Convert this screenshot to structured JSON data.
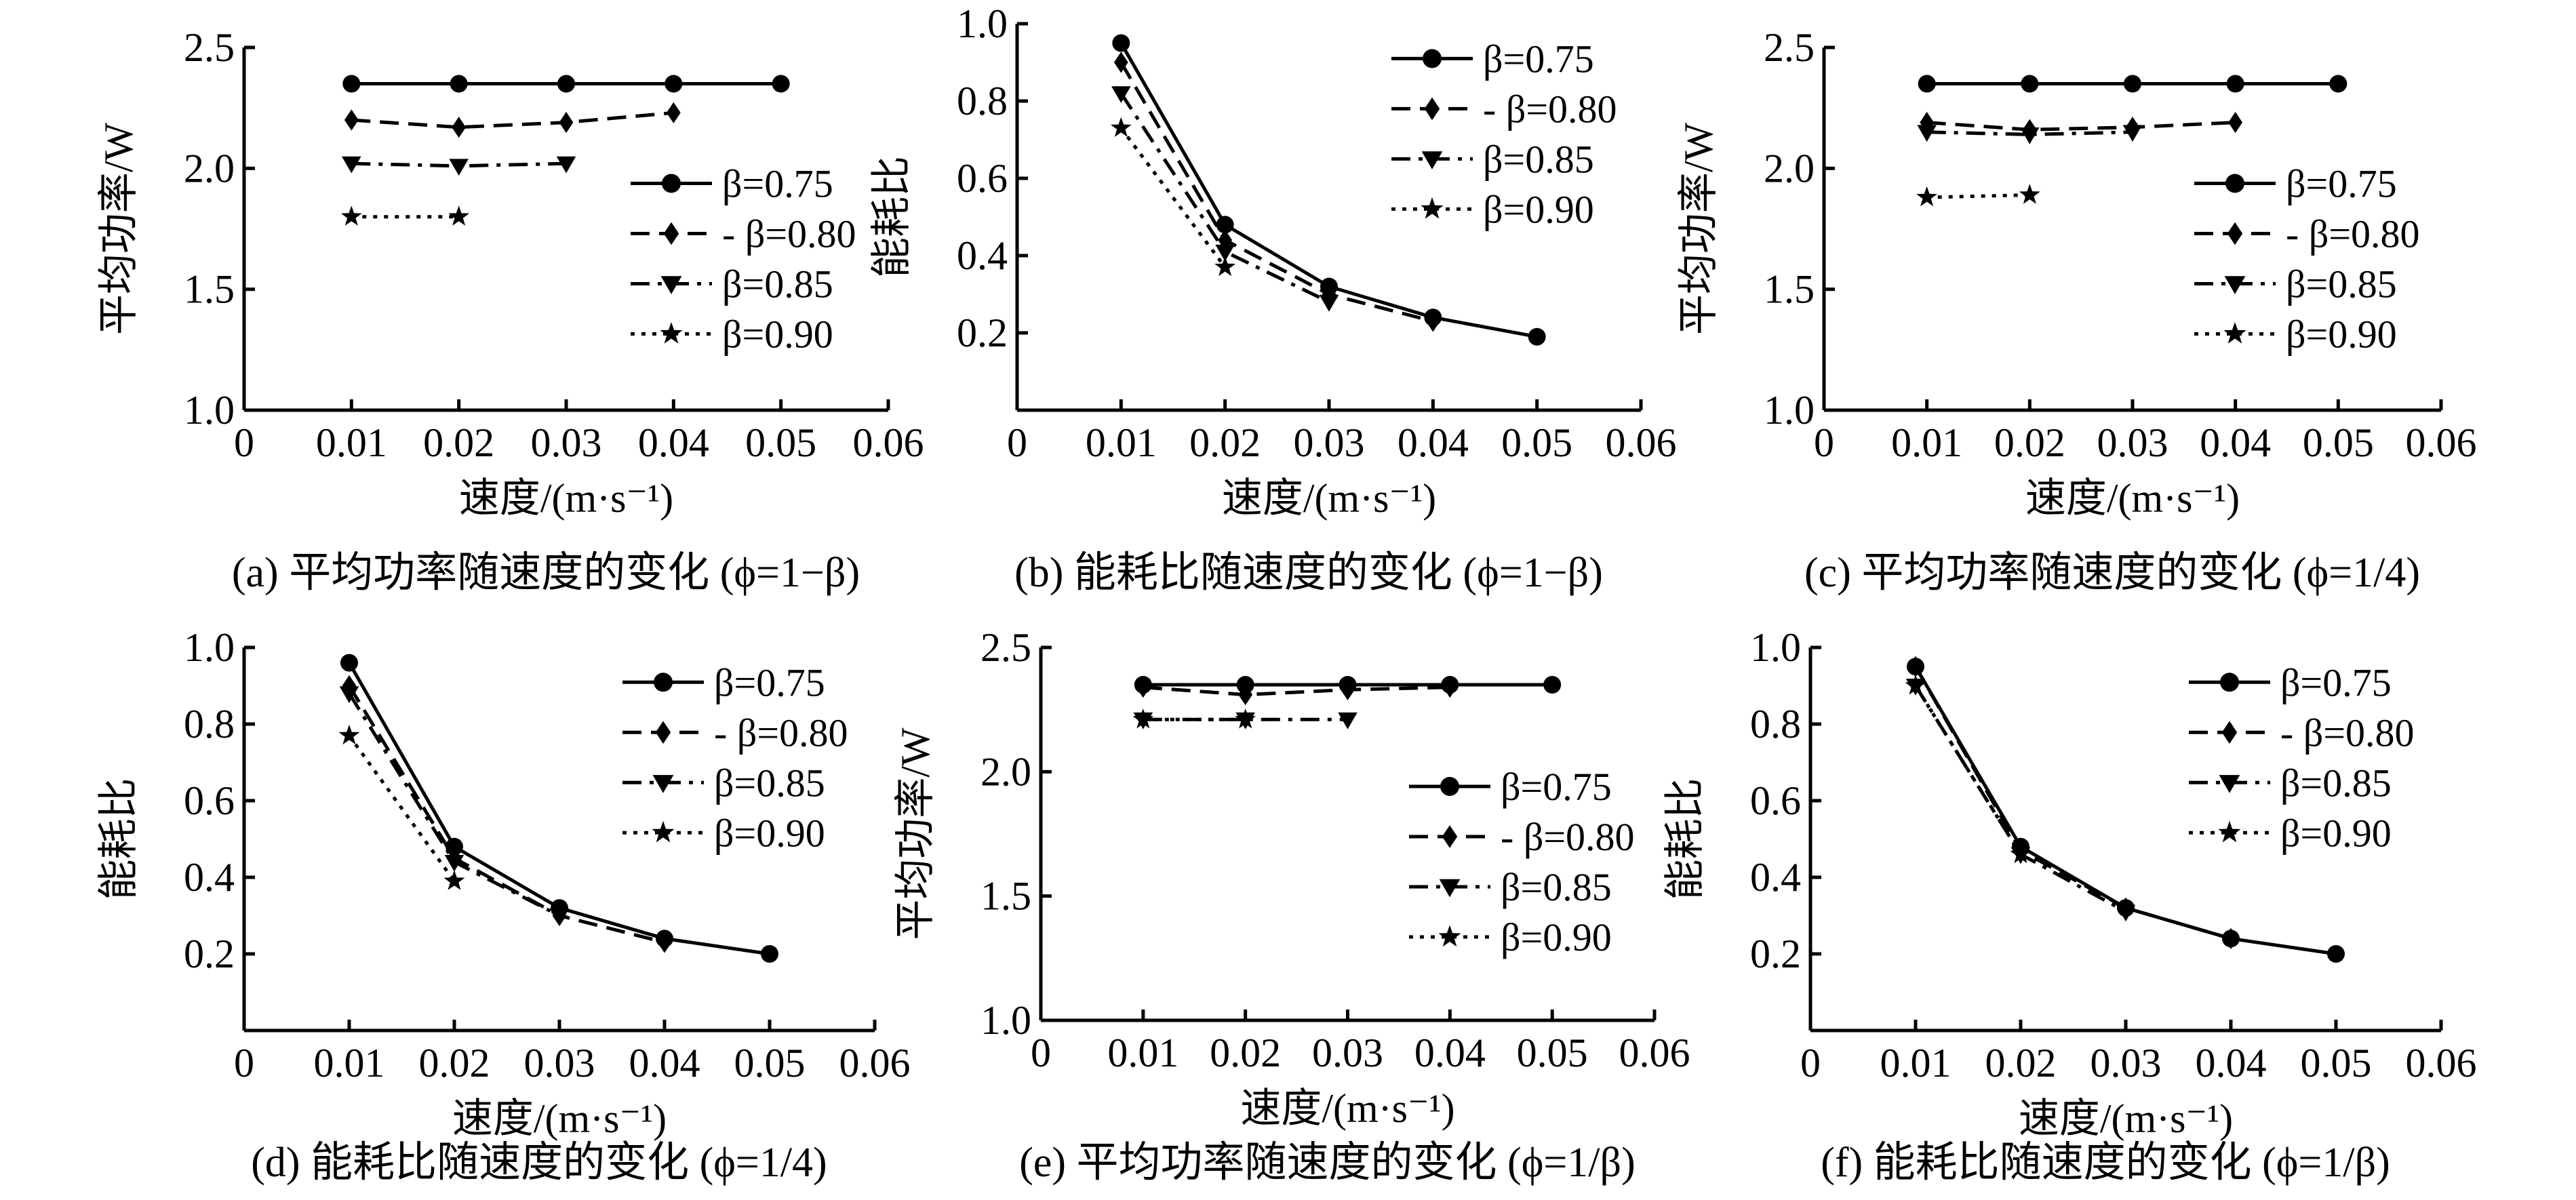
{
  "colors": {
    "ink": "#000000",
    "background": "#ffffff"
  },
  "chart_data": [
    {
      "type": "line",
      "caption": "(a) 平均功率随速度的变化 (ϕ=1−β)",
      "xlabel": "速度/(m·s⁻¹)",
      "ylabel": "平均功率/W",
      "xlim": [
        0,
        0.06
      ],
      "ylim": [
        1.0,
        2.5
      ],
      "xticks": [
        0,
        0.01,
        0.02,
        0.03,
        0.04,
        0.05,
        0.06
      ],
      "xtick_labels": [
        "0",
        "0.01",
        "0.02",
        "0.03",
        "0.04",
        "0.05",
        "0.06"
      ],
      "yticks": [
        1.0,
        1.5,
        2.0,
        2.5
      ],
      "ytick_labels": [
        "1.0",
        "1.5",
        "2.0",
        "2.5"
      ],
      "legend_position": "lower-right",
      "series": [
        {
          "name": "β=0.75",
          "legend": "β=0.75",
          "marker": "circle",
          "dash": "solid",
          "x": [
            0.01,
            0.02,
            0.03,
            0.04,
            0.05
          ],
          "y": [
            2.35,
            2.35,
            2.35,
            2.35,
            2.35
          ]
        },
        {
          "name": "β=0.80",
          "legend": "- β=0.80",
          "marker": "diamond",
          "dash": "dash",
          "x": [
            0.01,
            0.02,
            0.03,
            0.04
          ],
          "y": [
            2.2,
            2.17,
            2.19,
            2.23
          ]
        },
        {
          "name": "β=0.85",
          "legend": "β=0.85",
          "marker": "triangle",
          "dash": "dashdot",
          "x": [
            0.01,
            0.02,
            0.03
          ],
          "y": [
            2.02,
            2.01,
            2.02
          ]
        },
        {
          "name": "β=0.90",
          "legend": "β=0.90",
          "marker": "star",
          "dash": "dot",
          "x": [
            0.01,
            0.02
          ],
          "y": [
            1.8,
            1.8
          ]
        }
      ]
    },
    {
      "type": "line",
      "caption": "(b) 能耗比随速度的变化 (ϕ=1−β)",
      "xlabel": "速度/(m·s⁻¹)",
      "ylabel": "能耗比",
      "xlim": [
        0,
        0.06
      ],
      "ylim": [
        0.0,
        1.0
      ],
      "xticks": [
        0,
        0.01,
        0.02,
        0.03,
        0.04,
        0.05,
        0.06
      ],
      "xtick_labels": [
        "0",
        "0.01",
        "0.02",
        "0.03",
        "0.04",
        "0.05",
        "0.06"
      ],
      "yticks": [
        0.2,
        0.4,
        0.6,
        0.8,
        1.0
      ],
      "ytick_labels": [
        "0.2",
        "0.4",
        "0.6",
        "0.8",
        "1.0"
      ],
      "legend_position": "top-right",
      "series": [
        {
          "name": "β=0.75",
          "legend": "β=0.75",
          "marker": "circle",
          "dash": "solid",
          "x": [
            0.01,
            0.02,
            0.03,
            0.04,
            0.05
          ],
          "y": [
            0.95,
            0.48,
            0.32,
            0.24,
            0.19
          ]
        },
        {
          "name": "β=0.80",
          "legend": "- β=0.80",
          "marker": "diamond",
          "dash": "dash",
          "x": [
            0.01,
            0.02,
            0.03,
            0.04
          ],
          "y": [
            0.9,
            0.44,
            0.3,
            0.23
          ]
        },
        {
          "name": "β=0.85",
          "legend": "β=0.85",
          "marker": "triangle",
          "dash": "dashdot",
          "x": [
            0.01,
            0.02,
            0.03
          ],
          "y": [
            0.82,
            0.41,
            0.28
          ]
        },
        {
          "name": "β=0.90",
          "legend": "β=0.90",
          "marker": "star",
          "dash": "dot",
          "x": [
            0.01,
            0.02
          ],
          "y": [
            0.73,
            0.37
          ]
        }
      ]
    },
    {
      "type": "line",
      "caption": "(c) 平均功率随速度的变化 (ϕ=1/4)",
      "xlabel": "速度/(m·s⁻¹)",
      "ylabel": "平均功率/W",
      "xlim": [
        0,
        0.06
      ],
      "ylim": [
        1.0,
        2.5
      ],
      "xticks": [
        0,
        0.01,
        0.02,
        0.03,
        0.04,
        0.05,
        0.06
      ],
      "xtick_labels": [
        "0",
        "0.01",
        "0.02",
        "0.03",
        "0.04",
        "0.05",
        "0.06"
      ],
      "yticks": [
        1.0,
        1.5,
        2.0,
        2.5
      ],
      "ytick_labels": [
        "1.0",
        "1.5",
        "2.0",
        "2.5"
      ],
      "legend_position": "lower-right",
      "series": [
        {
          "name": "β=0.75",
          "legend": "β=0.75",
          "marker": "circle",
          "dash": "solid",
          "x": [
            0.01,
            0.02,
            0.03,
            0.04,
            0.05
          ],
          "y": [
            2.35,
            2.35,
            2.35,
            2.35,
            2.35
          ]
        },
        {
          "name": "β=0.80",
          "legend": "- β=0.80",
          "marker": "diamond",
          "dash": "dash",
          "x": [
            0.01,
            0.02,
            0.03,
            0.04
          ],
          "y": [
            2.19,
            2.16,
            2.17,
            2.19
          ]
        },
        {
          "name": "β=0.85",
          "legend": "β=0.85",
          "marker": "triangle",
          "dash": "dashdot",
          "x": [
            0.01,
            0.02,
            0.03
          ],
          "y": [
            2.15,
            2.14,
            2.15
          ]
        },
        {
          "name": "β=0.90",
          "legend": "β=0.90",
          "marker": "star",
          "dash": "dot",
          "x": [
            0.01,
            0.02
          ],
          "y": [
            1.88,
            1.89
          ]
        }
      ]
    },
    {
      "type": "line",
      "caption": "(d) 能耗比随速度的变化 (ϕ=1/4)",
      "xlabel": "速度/(m·s⁻¹)",
      "ylabel": "能耗比",
      "xlim": [
        0,
        0.06
      ],
      "ylim": [
        0.0,
        1.0
      ],
      "xticks": [
        0,
        0.01,
        0.02,
        0.03,
        0.04,
        0.05,
        0.06
      ],
      "xtick_labels": [
        "0",
        "0.01",
        "0.02",
        "0.03",
        "0.04",
        "0.05",
        "0.06"
      ],
      "yticks": [
        0.2,
        0.4,
        0.6,
        0.8,
        1.0
      ],
      "ytick_labels": [
        "0.2",
        "0.4",
        "0.6",
        "0.8",
        "1.0"
      ],
      "legend_position": "top-right",
      "series": [
        {
          "name": "β=0.75",
          "legend": "β=0.75",
          "marker": "circle",
          "dash": "solid",
          "x": [
            0.01,
            0.02,
            0.03,
            0.04,
            0.05
          ],
          "y": [
            0.96,
            0.48,
            0.32,
            0.24,
            0.2
          ]
        },
        {
          "name": "β=0.80",
          "legend": "- β=0.80",
          "marker": "diamond",
          "dash": "dash",
          "x": [
            0.01,
            0.02,
            0.03,
            0.04
          ],
          "y": [
            0.9,
            0.45,
            0.3,
            0.23
          ]
        },
        {
          "name": "β=0.85",
          "legend": "β=0.85",
          "marker": "triangle",
          "dash": "dashdot",
          "x": [
            0.01,
            0.02,
            0.03
          ],
          "y": [
            0.88,
            0.44,
            0.3
          ]
        },
        {
          "name": "β=0.90",
          "legend": "β=0.90",
          "marker": "star",
          "dash": "dot",
          "x": [
            0.01,
            0.02
          ],
          "y": [
            0.77,
            0.39
          ]
        }
      ]
    },
    {
      "type": "line",
      "caption": "(e) 平均功率随速度的变化 (ϕ=1/β)",
      "xlabel": "速度/(m·s⁻¹)",
      "ylabel": "平均功率/W",
      "xlim": [
        0,
        0.06
      ],
      "ylim": [
        1.0,
        2.5
      ],
      "xticks": [
        0,
        0.01,
        0.02,
        0.03,
        0.04,
        0.05,
        0.06
      ],
      "xtick_labels": [
        "0",
        "0.01",
        "0.02",
        "0.03",
        "0.04",
        "0.05",
        "0.06"
      ],
      "yticks": [
        1.0,
        1.5,
        2.0,
        2.5
      ],
      "ytick_labels": [
        "1.0",
        "1.5",
        "2.0",
        "2.5"
      ],
      "legend_position": "lower-right",
      "series": [
        {
          "name": "β=0.75",
          "legend": "β=0.75",
          "marker": "circle",
          "dash": "solid",
          "x": [
            0.01,
            0.02,
            0.03,
            0.04,
            0.05
          ],
          "y": [
            2.35,
            2.35,
            2.35,
            2.35,
            2.35
          ]
        },
        {
          "name": "β=0.80",
          "legend": "- β=0.80",
          "marker": "diamond",
          "dash": "dash",
          "x": [
            0.01,
            0.02,
            0.03,
            0.04
          ],
          "y": [
            2.34,
            2.31,
            2.33,
            2.34
          ]
        },
        {
          "name": "β=0.85",
          "legend": "β=0.85",
          "marker": "triangle",
          "dash": "dashdot",
          "x": [
            0.01,
            0.02,
            0.03
          ],
          "y": [
            2.21,
            2.21,
            2.21
          ]
        },
        {
          "name": "β=0.90",
          "legend": "β=0.90",
          "marker": "star",
          "dash": "dot",
          "x": [
            0.01,
            0.02
          ],
          "y": [
            2.21,
            2.21
          ]
        }
      ]
    },
    {
      "type": "line",
      "caption": "(f) 能耗比随速度的变化 (ϕ=1/β)",
      "xlabel": "速度/(m·s⁻¹)",
      "ylabel": "能耗比",
      "xlim": [
        0,
        0.06
      ],
      "ylim": [
        0.0,
        1.0
      ],
      "xticks": [
        0,
        0.01,
        0.02,
        0.03,
        0.04,
        0.05,
        0.06
      ],
      "xtick_labels": [
        "0",
        "0.01",
        "0.02",
        "0.03",
        "0.04",
        "0.05",
        "0.06"
      ],
      "yticks": [
        0.2,
        0.4,
        0.6,
        0.8,
        1.0
      ],
      "ytick_labels": [
        "0.2",
        "0.4",
        "0.6",
        "0.8",
        "1.0"
      ],
      "legend_position": "top-right",
      "series": [
        {
          "name": "β=0.75",
          "legend": "β=0.75",
          "marker": "circle",
          "dash": "solid",
          "x": [
            0.01,
            0.02,
            0.03,
            0.04,
            0.05
          ],
          "y": [
            0.95,
            0.48,
            0.32,
            0.24,
            0.2
          ]
        },
        {
          "name": "β=0.80",
          "legend": "- β=0.80",
          "marker": "diamond",
          "dash": "dash",
          "x": [
            0.01,
            0.02,
            0.03,
            0.04
          ],
          "y": [
            0.95,
            0.47,
            0.32,
            0.24
          ]
        },
        {
          "name": "β=0.85",
          "legend": "β=0.85",
          "marker": "triangle",
          "dash": "dashdot",
          "x": [
            0.01,
            0.02,
            0.03
          ],
          "y": [
            0.9,
            0.46,
            0.31
          ]
        },
        {
          "name": "β=0.90",
          "legend": "β=0.90",
          "marker": "star",
          "dash": "dot",
          "x": [
            0.01,
            0.02
          ],
          "y": [
            0.9,
            0.46
          ]
        }
      ]
    }
  ]
}
